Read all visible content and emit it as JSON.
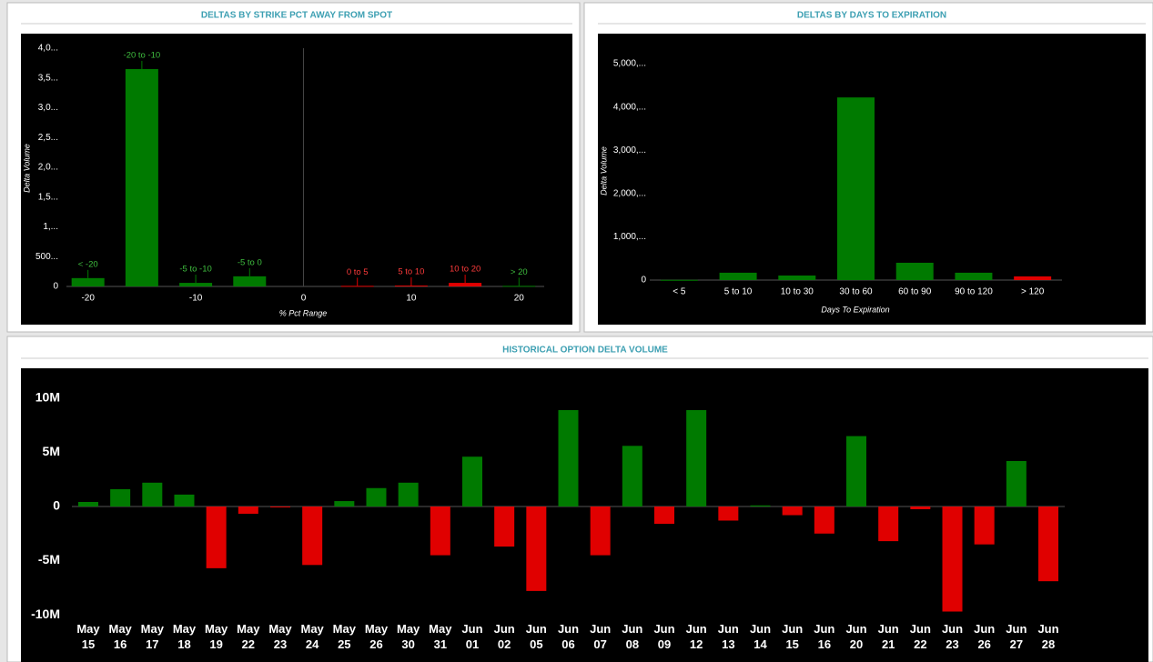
{
  "chart_data": [
    {
      "type": "bar",
      "title": "DELTAS BY STRIKE PCT AWAY FROM SPOT",
      "x_label": "% Pct Range",
      "y_label": "Delta Volume",
      "x": [
        -20,
        -15,
        -10,
        -5,
        5,
        10,
        15,
        20
      ],
      "values": [
        140,
        3650,
        60,
        170,
        10,
        15,
        60,
        10
      ],
      "labels": [
        "< -20",
        "-20 to -10",
        "-5 to -10",
        "-5 to 0",
        "0 to 5",
        "5 to 10",
        "10 to 20",
        "> 20"
      ],
      "colors": [
        "#007a00",
        "#007a00",
        "#007a00",
        "#007a00",
        "#e00000",
        "#e00000",
        "#e00000",
        "#007a00"
      ],
      "xlim": [
        -22,
        22
      ],
      "xticks": [
        -20,
        -10,
        0,
        10,
        20
      ],
      "ylim": [
        0,
        4000
      ],
      "yticks": [
        0,
        {
          "value": 500,
          "label": "500..."
        },
        {
          "value": 1000,
          "label": "1,..."
        },
        {
          "value": 1500,
          "label": "1,5..."
        },
        {
          "value": 2000,
          "label": "2,0..."
        },
        {
          "value": 2500,
          "label": "2,5..."
        },
        {
          "value": 3000,
          "label": "3,0..."
        },
        {
          "value": 3500,
          "label": "3,5..."
        },
        {
          "value": 4000,
          "label": "4,0..."
        }
      ]
    },
    {
      "type": "bar",
      "title": "DELTAS BY DAYS TO EXPIRATION",
      "x_label": "Days To Expiration",
      "y_label": "Delta Volume",
      "categories": [
        "< 5",
        "5 to 10",
        "10 to 30",
        "30 to 60",
        "60 to 90",
        "90 to 120",
        "> 120"
      ],
      "values": [
        5,
        170,
        105,
        4220,
        400,
        170,
        85
      ],
      "colors": [
        "#007a00",
        "#007a00",
        "#007a00",
        "#007a00",
        "#007a00",
        "#007a00",
        "#e00000"
      ],
      "ylim": [
        0,
        5200
      ],
      "yticks": [
        0,
        {
          "value": 1000,
          "label": "1,000,..."
        },
        {
          "value": 2000,
          "label": "2,000,..."
        },
        {
          "value": 3000,
          "label": "3,000,..."
        },
        {
          "value": 4000,
          "label": "4,000,..."
        },
        {
          "value": 5000,
          "label": "5,000,..."
        }
      ]
    },
    {
      "type": "bar",
      "title": "HISTORICAL OPTION DELTA VOLUME",
      "categories": [
        "May 15",
        "May 16",
        "May 17",
        "May 18",
        "May 19",
        "May 22",
        "May 23",
        "May 24",
        "May 25",
        "May 26",
        "May 30",
        "May 31",
        "Jun 01",
        "Jun 02",
        "Jun 05",
        "Jun 06",
        "Jun 07",
        "Jun 08",
        "Jun 09",
        "Jun 12",
        "Jun 13",
        "Jun 14",
        "Jun 15",
        "Jun 16",
        "Jun 20",
        "Jun 21",
        "Jun 22",
        "Jun 23",
        "Jun 26",
        "Jun 27",
        "Jun 28"
      ],
      "values": [
        420000,
        1600000,
        2200000,
        1100000,
        -5700000,
        -670000,
        -80000,
        -5400000,
        500000,
        1700000,
        2200000,
        -4500000,
        4600000,
        -3700000,
        -7800000,
        8900000,
        -4500000,
        5600000,
        -1600000,
        8900000,
        -1300000,
        100000,
        -800000,
        -2500000,
        6500000,
        -3200000,
        -250000,
        -9700000,
        -3500000,
        4200000,
        -6900000
      ],
      "positive_color": "#007a00",
      "negative_color": "#e00000",
      "ylim": [
        -11000000,
        11000000
      ],
      "yticks": [
        {
          "value": -10000000,
          "label": "-10M"
        },
        {
          "value": -5000000,
          "label": "-5M"
        },
        0,
        {
          "value": 5000000,
          "label": "5M"
        },
        {
          "value": 10000000,
          "label": "10M"
        }
      ]
    }
  ]
}
